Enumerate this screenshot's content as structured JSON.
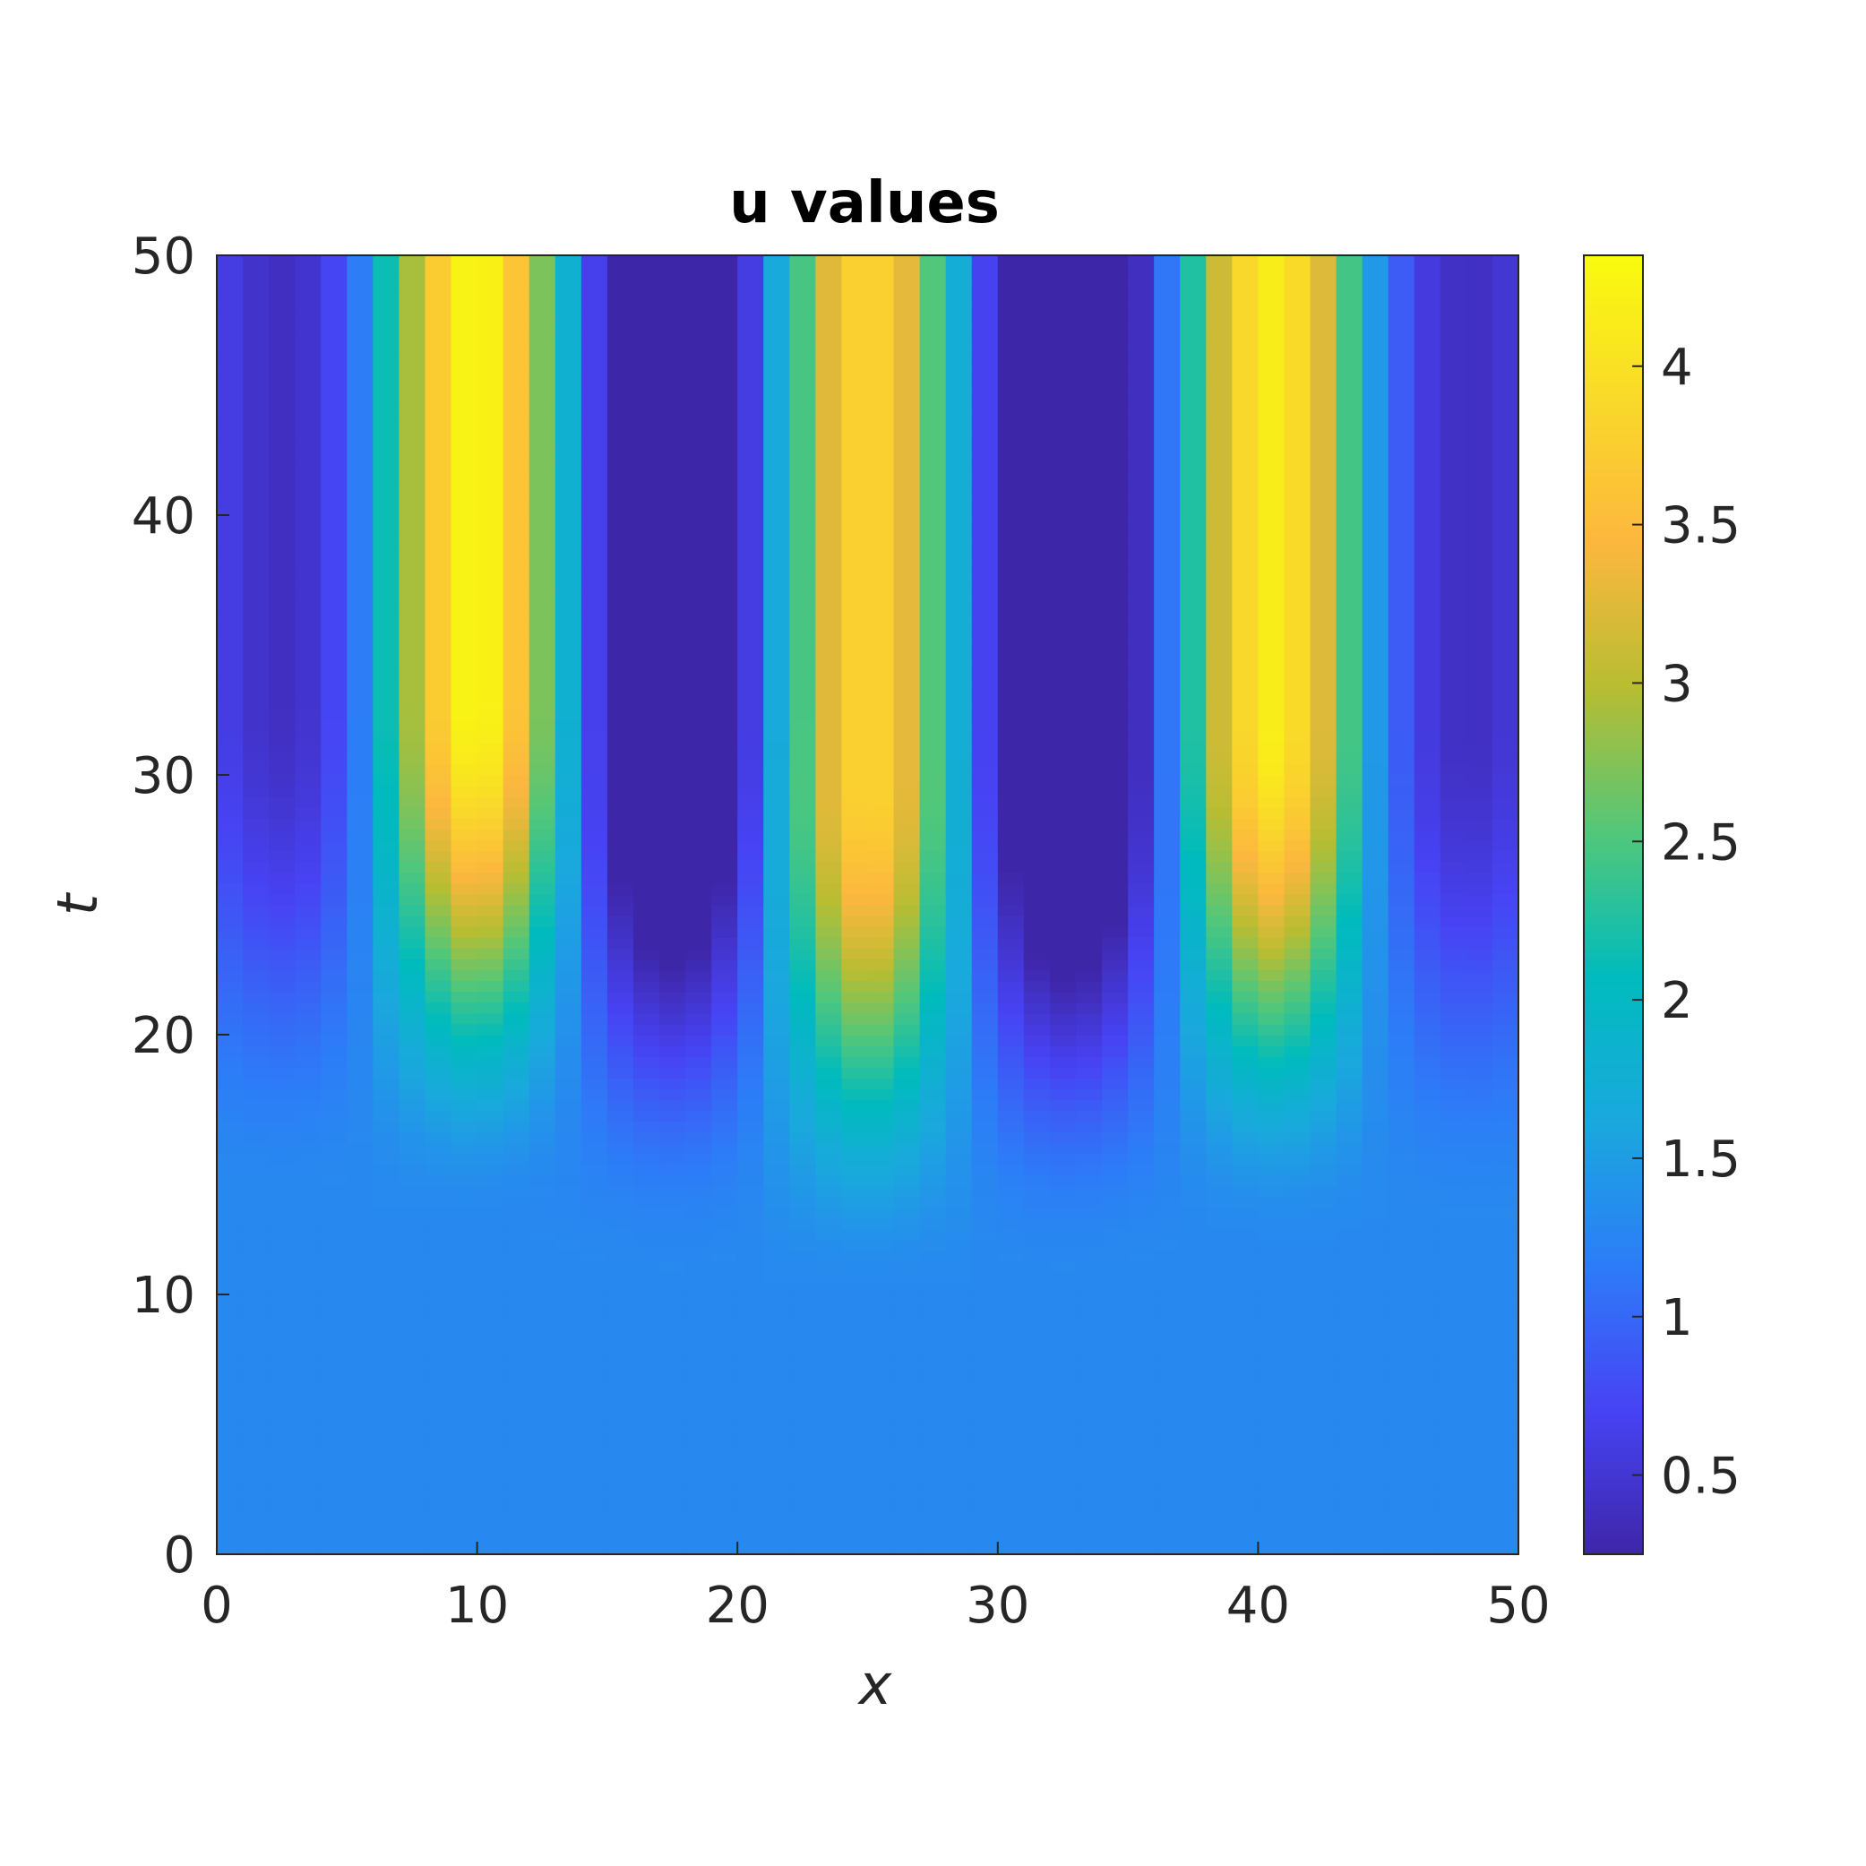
{
  "chart_data": {
    "type": "heatmap",
    "title": "u values",
    "xlabel": "x",
    "ylabel": "t",
    "xlim": [
      0,
      50
    ],
    "ylim": [
      0,
      50
    ],
    "x_ticks": [
      "0",
      "10",
      "20",
      "30",
      "40",
      "50"
    ],
    "y_ticks": [
      "0",
      "10",
      "20",
      "30",
      "40",
      "50"
    ],
    "colorbar": {
      "range": [
        0.25,
        4.35
      ],
      "ticks": [
        "0.5",
        "1",
        "1.5",
        "2",
        "2.5",
        "3",
        "3.5",
        "4"
      ],
      "colormap": "parula"
    },
    "field": {
      "nx": 50,
      "base_value": 1.3,
      "peaks": [
        {
          "center": 10.0,
          "max": 4.35,
          "onset_t": 27
        },
        {
          "center": 25.0,
          "max": 3.9,
          "onset_t": 24
        },
        {
          "center": 40.5,
          "max": 4.2,
          "onset_t": 26
        }
      ],
      "trough_value": 0.28
    }
  },
  "colors": {
    "parula_stops": [
      "#3e26a8",
      "#4743f4",
      "#2d7cf7",
      "#1aa8dd",
      "#00bbbd",
      "#52c77a",
      "#b7bd32",
      "#fcb73f",
      "#f9d92a",
      "#f9fb0e"
    ]
  }
}
